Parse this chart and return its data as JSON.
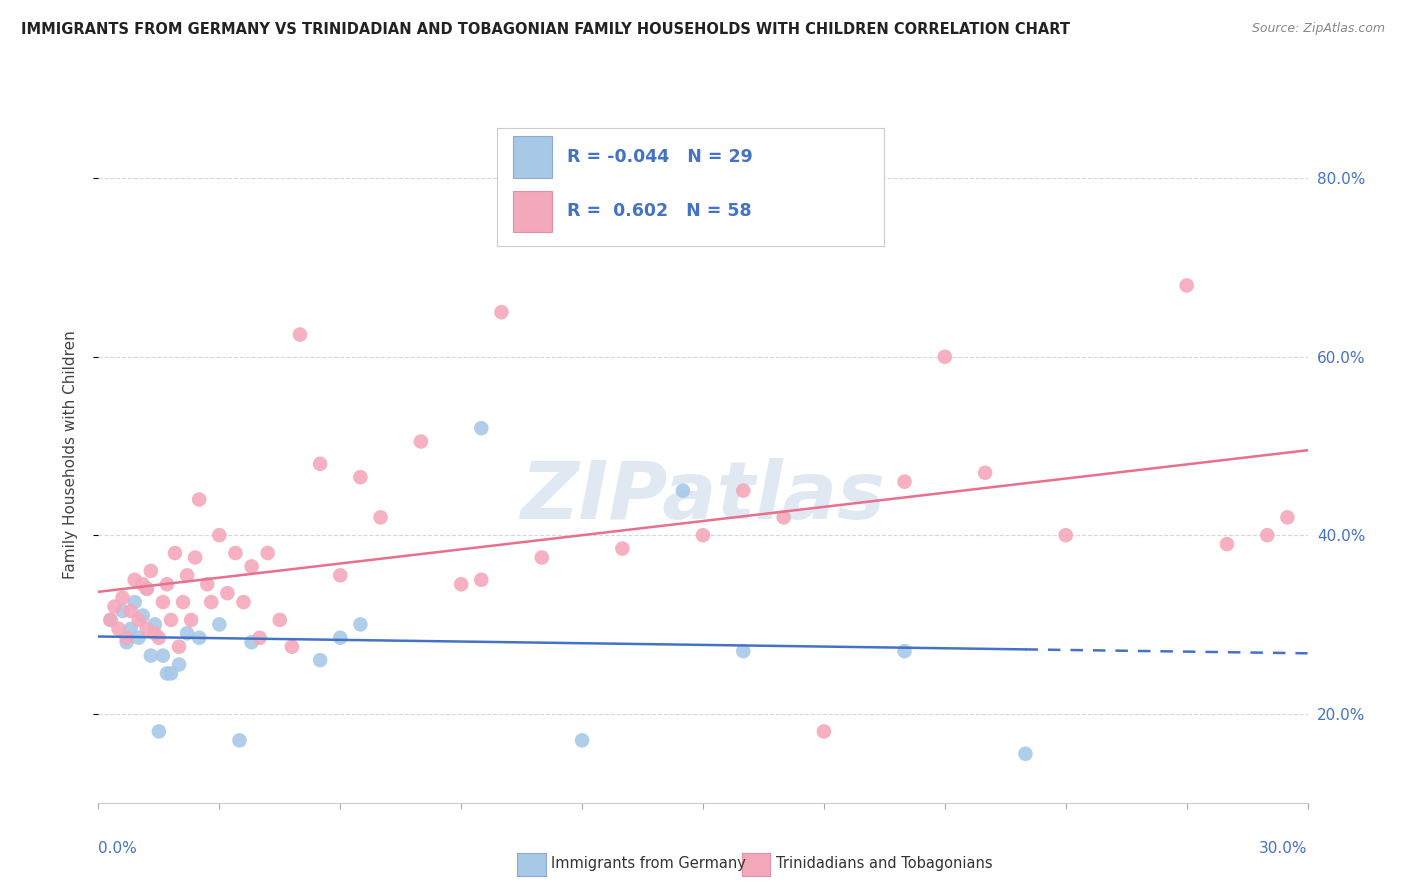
{
  "title": "IMMIGRANTS FROM GERMANY VS TRINIDADIAN AND TOBAGONIAN FAMILY HOUSEHOLDS WITH CHILDREN CORRELATION CHART",
  "source": "Source: ZipAtlas.com",
  "ylabel": "Family Households with Children",
  "ytick_vals": [
    0.2,
    0.4,
    0.6,
    0.8
  ],
  "ytick_labels": [
    "20.0%",
    "40.0%",
    "60.0%",
    "80.0%"
  ],
  "blue_r": "-0.044",
  "blue_n": "29",
  "pink_r": "0.602",
  "pink_n": "58",
  "legend_label_blue": "Immigrants from Germany",
  "legend_label_pink": "Trinidadians and Tobagonians",
  "watermark": "ZIPatlas",
  "blue_color": "#a8c8e8",
  "pink_color": "#f4a8bc",
  "blue_line_color": "#4472c4",
  "pink_line_color": "#e8708c",
  "background_color": "#ffffff",
  "grid_color": "#d8d8d8",
  "xlim": [
    0.0,
    0.3
  ],
  "ylim": [
    0.1,
    0.88
  ],
  "blue_points_x": [
    0.003,
    0.006,
    0.007,
    0.008,
    0.009,
    0.01,
    0.011,
    0.012,
    0.013,
    0.014,
    0.015,
    0.016,
    0.017,
    0.018,
    0.02,
    0.022,
    0.025,
    0.03,
    0.035,
    0.038,
    0.055,
    0.06,
    0.065,
    0.095,
    0.12,
    0.145,
    0.16,
    0.2,
    0.23
  ],
  "blue_points_y": [
    0.305,
    0.315,
    0.28,
    0.295,
    0.325,
    0.285,
    0.31,
    0.34,
    0.265,
    0.3,
    0.18,
    0.265,
    0.245,
    0.245,
    0.255,
    0.29,
    0.285,
    0.3,
    0.17,
    0.28,
    0.26,
    0.285,
    0.3,
    0.52,
    0.17,
    0.45,
    0.27,
    0.27,
    0.155
  ],
  "pink_points_x": [
    0.003,
    0.004,
    0.005,
    0.006,
    0.007,
    0.008,
    0.009,
    0.01,
    0.011,
    0.012,
    0.012,
    0.013,
    0.014,
    0.015,
    0.016,
    0.017,
    0.018,
    0.019,
    0.02,
    0.021,
    0.022,
    0.023,
    0.024,
    0.025,
    0.027,
    0.028,
    0.03,
    0.032,
    0.034,
    0.036,
    0.038,
    0.04,
    0.042,
    0.045,
    0.048,
    0.05,
    0.055,
    0.06,
    0.065,
    0.07,
    0.08,
    0.09,
    0.095,
    0.1,
    0.11,
    0.13,
    0.15,
    0.16,
    0.17,
    0.18,
    0.2,
    0.21,
    0.22,
    0.24,
    0.27,
    0.28,
    0.29,
    0.295
  ],
  "pink_points_y": [
    0.305,
    0.32,
    0.295,
    0.33,
    0.285,
    0.315,
    0.35,
    0.305,
    0.345,
    0.295,
    0.34,
    0.36,
    0.29,
    0.285,
    0.325,
    0.345,
    0.305,
    0.38,
    0.275,
    0.325,
    0.355,
    0.305,
    0.375,
    0.44,
    0.345,
    0.325,
    0.4,
    0.335,
    0.38,
    0.325,
    0.365,
    0.285,
    0.38,
    0.305,
    0.275,
    0.625,
    0.48,
    0.355,
    0.465,
    0.42,
    0.505,
    0.345,
    0.35,
    0.65,
    0.375,
    0.385,
    0.4,
    0.45,
    0.42,
    0.18,
    0.46,
    0.6,
    0.47,
    0.4,
    0.68,
    0.39,
    0.4,
    0.42
  ]
}
